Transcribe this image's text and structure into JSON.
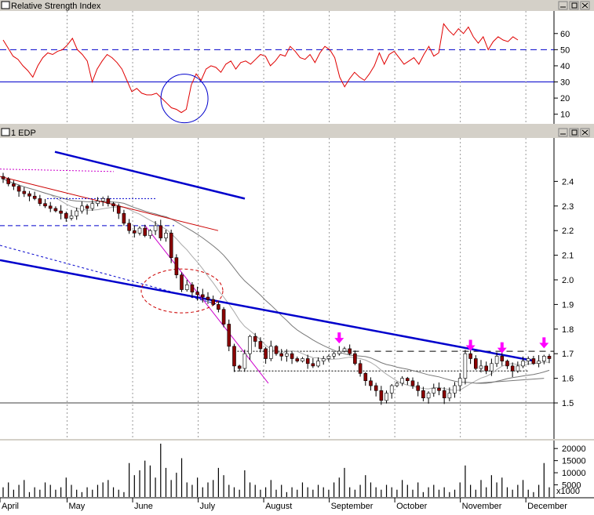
{
  "window": {
    "rsi_title": "Relative Strength Index",
    "price_title": "1 EDP",
    "volume_multiplier": "x1000",
    "colors": {
      "rsi": "#e00000",
      "trend": "#0000cc",
      "up_candle": "#ffffff",
      "down_candle": "#8b0000",
      "arrow": "#ff00ff",
      "ma_slow": "#777777",
      "ma_fast": "#aaaaaa"
    }
  },
  "chart_data": [
    {
      "type": "line",
      "name": "rsi_panel",
      "title": "Relative Strength Index",
      "ylim": [
        5,
        73
      ],
      "yticks": [
        "10",
        "20",
        "30",
        "40",
        "50",
        "60"
      ],
      "reference_lines": [
        {
          "value": 50,
          "style": "dashed"
        },
        {
          "value": 30,
          "style": "solid"
        }
      ],
      "values": [
        56,
        51,
        46,
        44,
        40,
        37,
        33,
        40,
        45,
        48,
        47,
        49,
        50,
        53,
        57,
        50,
        47,
        43,
        30,
        38,
        43,
        47,
        45,
        42,
        38,
        31,
        24,
        26,
        23,
        22,
        22,
        23,
        20,
        17,
        14,
        13,
        11,
        13,
        28,
        35,
        31,
        38,
        40,
        39,
        36,
        41,
        43,
        38,
        42,
        43,
        41,
        44,
        47,
        46,
        40,
        43,
        47,
        46,
        52,
        49,
        45,
        44,
        47,
        42,
        48,
        52,
        50,
        45,
        33,
        27,
        32,
        36,
        33,
        31,
        35,
        40,
        48,
        41,
        47,
        49,
        45,
        41,
        43,
        45,
        41,
        47,
        52,
        46,
        48,
        66,
        62,
        59,
        63,
        60,
        64,
        58,
        54,
        58,
        50,
        55,
        58,
        56,
        55,
        58,
        56
      ]
    },
    {
      "type": "candlestick",
      "name": "price_panel",
      "title": "1 EDP",
      "ylim": [
        1.36,
        2.57
      ],
      "yticks": [
        "1.5",
        "1.6",
        "1.7",
        "1.8",
        "1.9",
        "2.0",
        "2.1",
        "2.2",
        "2.3",
        "2.4"
      ],
      "x_tick_labels": [
        "April",
        "May",
        "June",
        "July",
        "August",
        "September",
        "October",
        "November",
        "December"
      ],
      "close": [
        2.41,
        2.39,
        2.38,
        2.36,
        2.35,
        2.34,
        2.33,
        2.31,
        2.3,
        2.29,
        2.28,
        2.27,
        2.25,
        2.26,
        2.28,
        2.3,
        2.29,
        2.31,
        2.32,
        2.33,
        2.31,
        2.3,
        2.27,
        2.23,
        2.2,
        2.19,
        2.21,
        2.18,
        2.2,
        2.22,
        2.17,
        2.19,
        2.09,
        2.02,
        1.96,
        1.98,
        1.95,
        1.94,
        1.93,
        1.92,
        1.9,
        1.88,
        1.82,
        1.73,
        1.65,
        1.64,
        1.7,
        1.77,
        1.75,
        1.72,
        1.68,
        1.73,
        1.7,
        1.69,
        1.7,
        1.68,
        1.67,
        1.68,
        1.66,
        1.65,
        1.67,
        1.68,
        1.69,
        1.7,
        1.71,
        1.72,
        1.7,
        1.66,
        1.62,
        1.59,
        1.57,
        1.55,
        1.51,
        1.54,
        1.57,
        1.58,
        1.6,
        1.59,
        1.57,
        1.55,
        1.52,
        1.54,
        1.56,
        1.55,
        1.52,
        1.54,
        1.57,
        1.6,
        1.7,
        1.68,
        1.64,
        1.65,
        1.63,
        1.66,
        1.69,
        1.67,
        1.65,
        1.63,
        1.65,
        1.67,
        1.68,
        1.66,
        1.67,
        1.69,
        1.68
      ],
      "volume": [
        4,
        6,
        3,
        5,
        7,
        2,
        4,
        3,
        6,
        5,
        3,
        4,
        8,
        5,
        3,
        2,
        4,
        3,
        5,
        6,
        7,
        4,
        3,
        2,
        14,
        9,
        11,
        15,
        13,
        8,
        22,
        12,
        7,
        10,
        16,
        6,
        5,
        8,
        4,
        6,
        7,
        12,
        9,
        5,
        4,
        3,
        11,
        6,
        5,
        3,
        4,
        7,
        3,
        5,
        2,
        4,
        3,
        6,
        4,
        3,
        5,
        4,
        3,
        6,
        8,
        12,
        4,
        3,
        5,
        9,
        6,
        4,
        3,
        5,
        4,
        3,
        7,
        5,
        3,
        6,
        2,
        4,
        5,
        3,
        4,
        2,
        3,
        6,
        13,
        5,
        3,
        7,
        4,
        9,
        6,
        8,
        4,
        3,
        5,
        7,
        3,
        2,
        5,
        14,
        4
      ],
      "volume_ticks": [
        "5000",
        "10000",
        "15000",
        "20000"
      ],
      "volume_unit": "x1000",
      "support_level": 1.5,
      "resistance_level": 1.71,
      "lower_band": 1.63
    }
  ]
}
